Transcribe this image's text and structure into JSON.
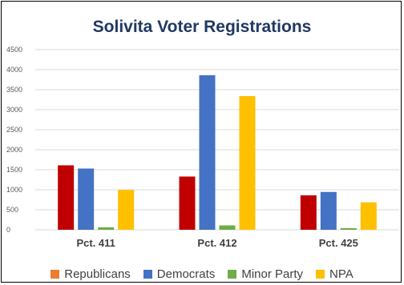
{
  "chart_data": {
    "type": "bar",
    "title": "Solivita Voter Registrations",
    "categories": [
      "Pct. 411",
      "Pct. 412",
      "Pct. 425"
    ],
    "series": [
      {
        "name": "Republicans",
        "color": "#c00000",
        "legend_color": "#ed7d31",
        "values": [
          1610,
          1330,
          860
        ]
      },
      {
        "name": "Democrats",
        "color": "#4472c4",
        "legend_color": "#4472c4",
        "values": [
          1530,
          3860,
          945
        ]
      },
      {
        "name": "Minor Party",
        "color": "#70ad47",
        "legend_color": "#70ad47",
        "values": [
          60,
          110,
          40
        ]
      },
      {
        "name": "NPA",
        "color": "#ffc000",
        "legend_color": "#ffc000",
        "values": [
          995,
          3340,
          685
        ]
      }
    ],
    "ylim": [
      0,
      4500
    ],
    "yticks": [
      0,
      500,
      1000,
      1500,
      2000,
      2500,
      3000,
      3500,
      4000,
      4500
    ],
    "grid": true,
    "legend_position": "bottom"
  }
}
